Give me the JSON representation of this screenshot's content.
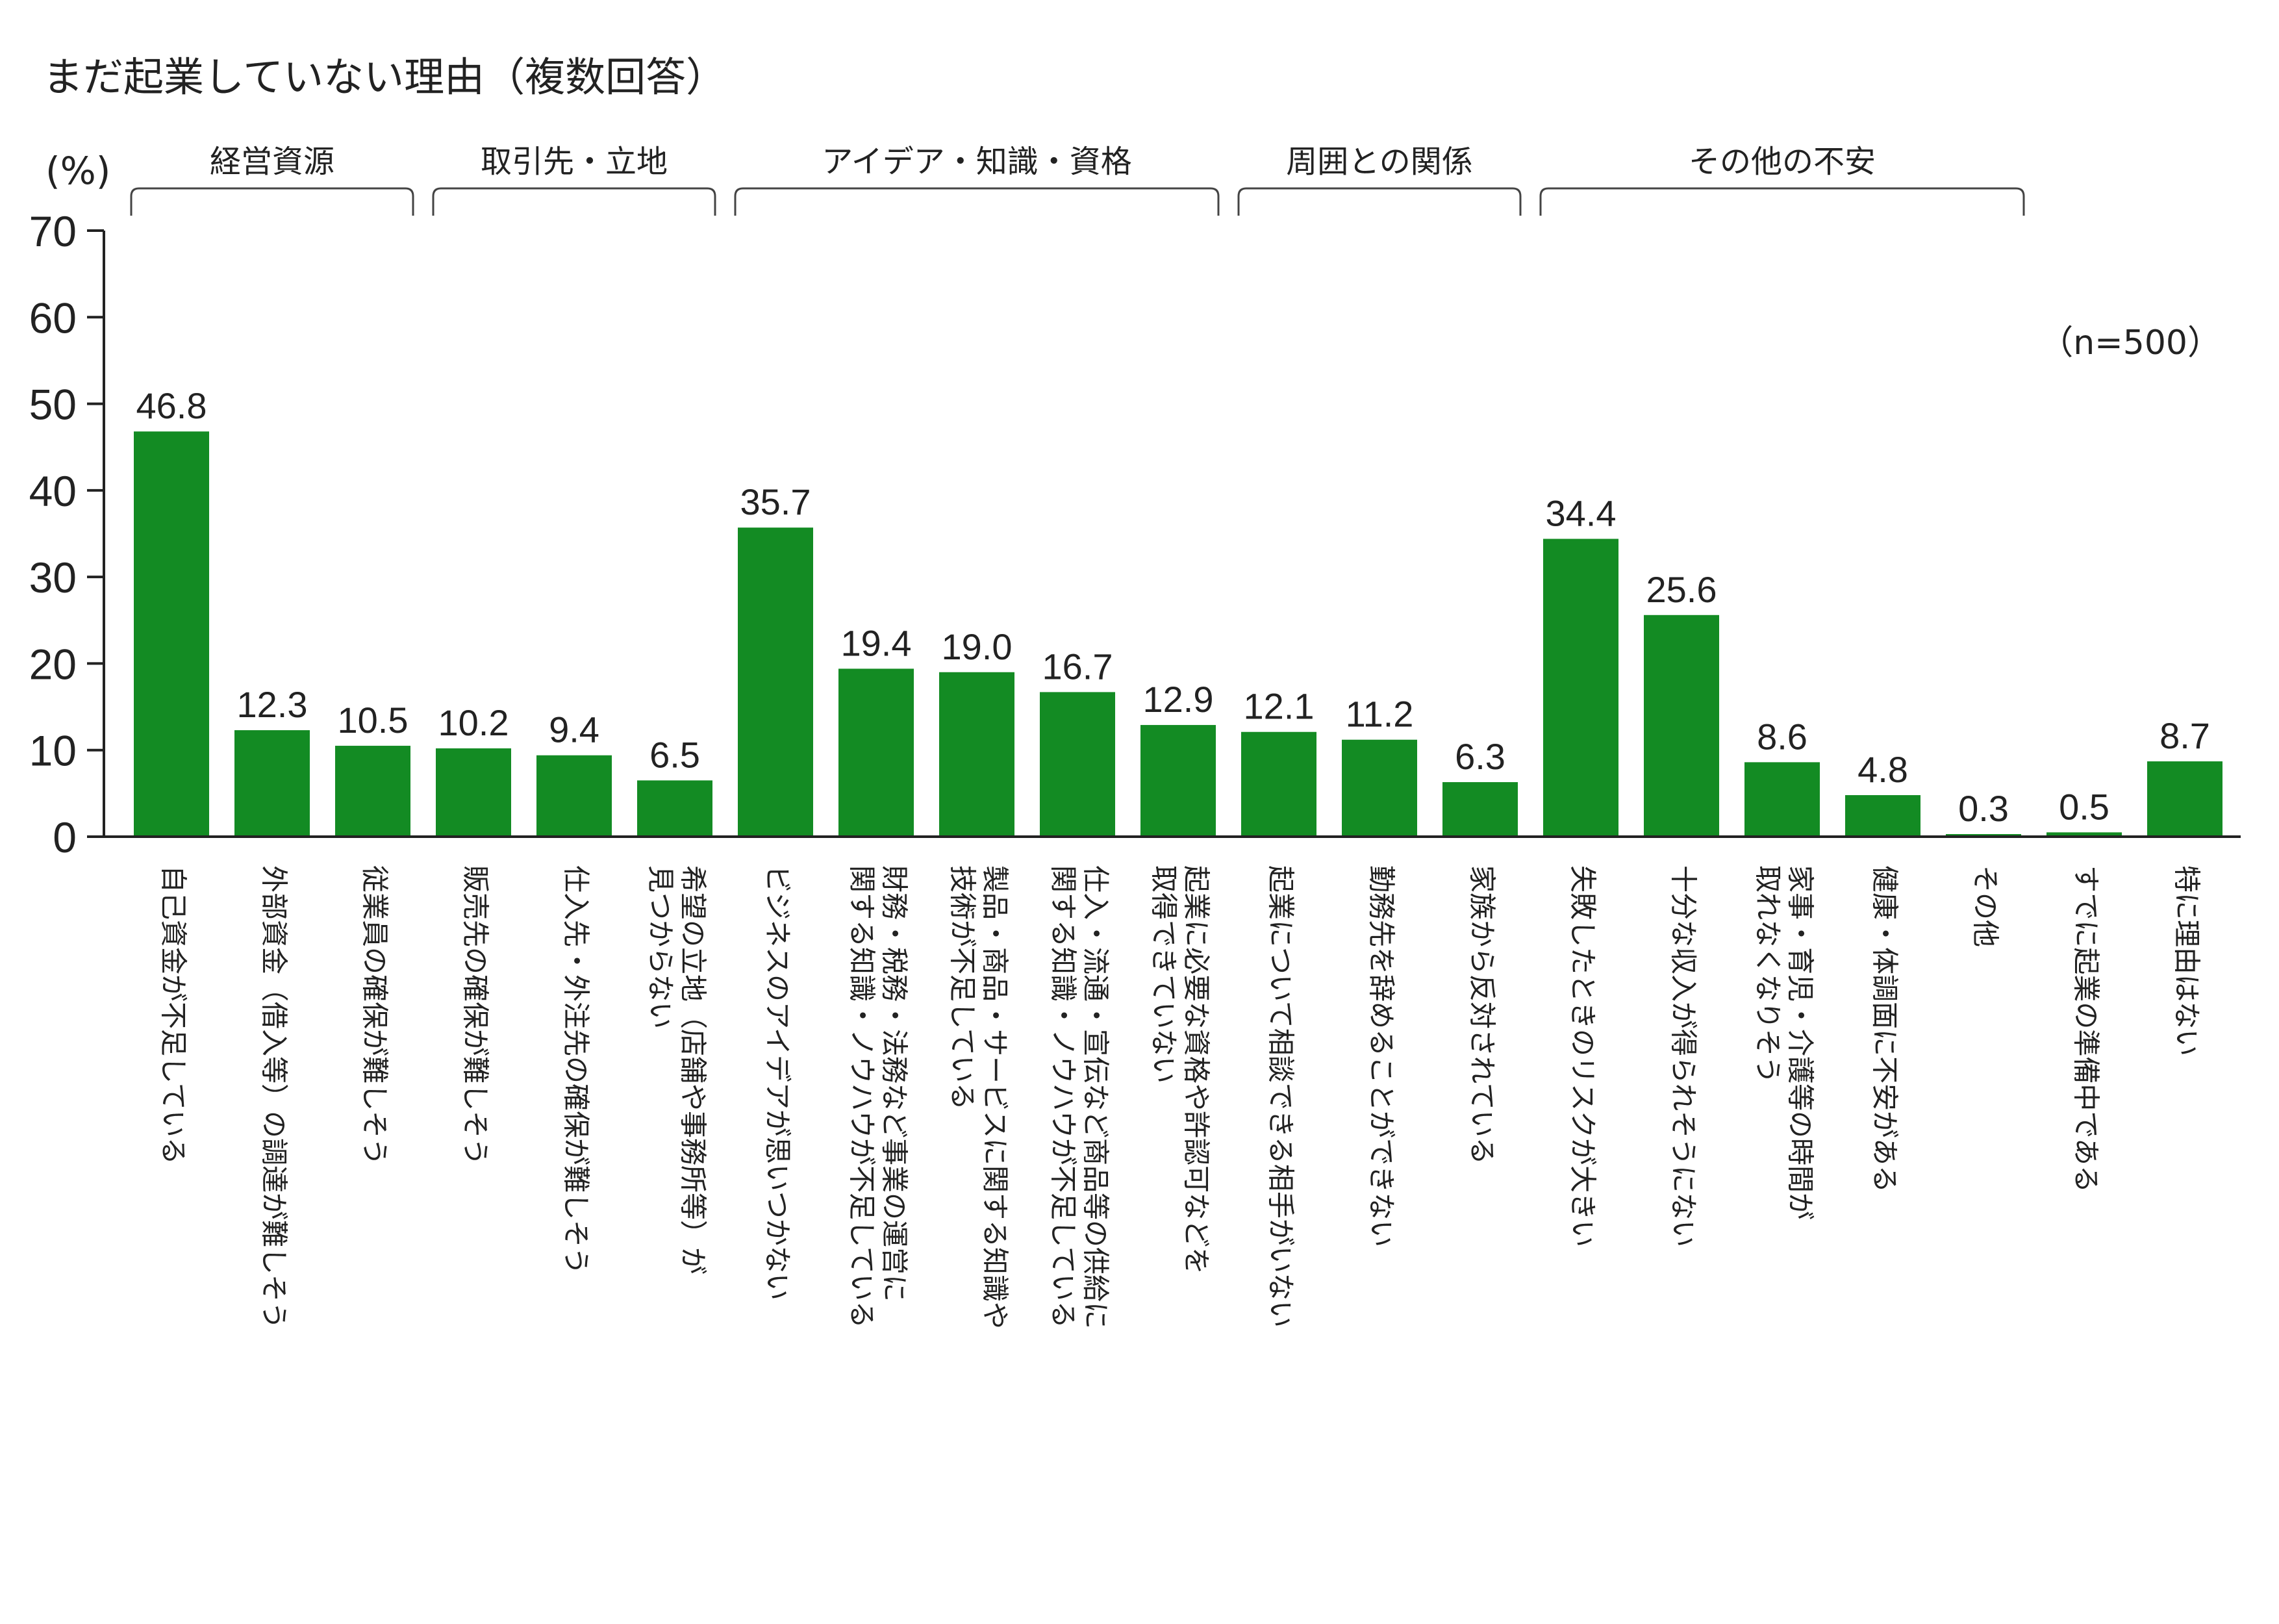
{
  "chart_data": {
    "type": "bar",
    "title": "まだ起業していない理由（複数回答）",
    "ylabel": "(%)",
    "sample_note": "（n=500）",
    "ylim": [
      0,
      70
    ],
    "yticks": [
      0,
      10,
      20,
      30,
      40,
      50,
      60,
      70
    ],
    "grid": false,
    "bar_color": "#138b23",
    "groups": [
      {
        "name": "経営資源",
        "start": 0,
        "end": 2
      },
      {
        "name": "取引先・立地",
        "start": 3,
        "end": 5
      },
      {
        "name": "アイデア・知識・資格",
        "start": 6,
        "end": 10
      },
      {
        "name": "周囲との関係",
        "start": 11,
        "end": 13
      },
      {
        "name": "その他の不安",
        "start": 14,
        "end": 18
      }
    ],
    "categories": [
      [
        "自己資金が不足している"
      ],
      [
        "外部資金（借入等）の調達が難しそう"
      ],
      [
        "従業員の確保が難しそう"
      ],
      [
        "販売先の確保が難しそう"
      ],
      [
        "仕入先・外注先の確保が難しそう"
      ],
      [
        "希望の立地（店舗や事務所等）が",
        "見つからない"
      ],
      [
        "ビジネスのアイデアが思いつかない"
      ],
      [
        "財務・税務・法務など事業の運営に",
        "関する知識・ノウハウが不足している"
      ],
      [
        "製品・商品・サービスに関する知識や",
        "技術が不足している"
      ],
      [
        "仕入・流通・宣伝など商品等の供給に",
        "関する知識・ノウハウが不足している"
      ],
      [
        "起業に必要な資格や許認可などを",
        "取得できていない"
      ],
      [
        "起業について相談できる相手がいない"
      ],
      [
        "勤務先を辞めることができない"
      ],
      [
        "家族から反対されている"
      ],
      [
        "失敗したときのリスクが大きい"
      ],
      [
        "十分な収入が得られそうにない"
      ],
      [
        "家事・育児・介護等の時間が",
        "取れなくなりそう"
      ],
      [
        "健康・体調面に不安がある"
      ],
      [
        "その他"
      ],
      [
        "すでに起業の準備中である"
      ],
      [
        "特に理由はない"
      ]
    ],
    "values": [
      46.8,
      12.3,
      10.5,
      10.2,
      9.4,
      6.5,
      35.7,
      19.4,
      19.0,
      16.7,
      12.9,
      12.1,
      11.2,
      6.3,
      34.4,
      25.6,
      8.6,
      4.8,
      0.3,
      0.5,
      8.7
    ],
    "value_labels": [
      "46.8",
      "12.3",
      "10.5",
      "10.2",
      "9.4",
      "6.5",
      "35.7",
      "19.4",
      "19.0",
      "16.7",
      "12.9",
      "12.1",
      "11.2",
      "6.3",
      "34.4",
      "25.6",
      "8.6",
      "4.8",
      "0.3",
      "0.5",
      "8.7"
    ]
  }
}
